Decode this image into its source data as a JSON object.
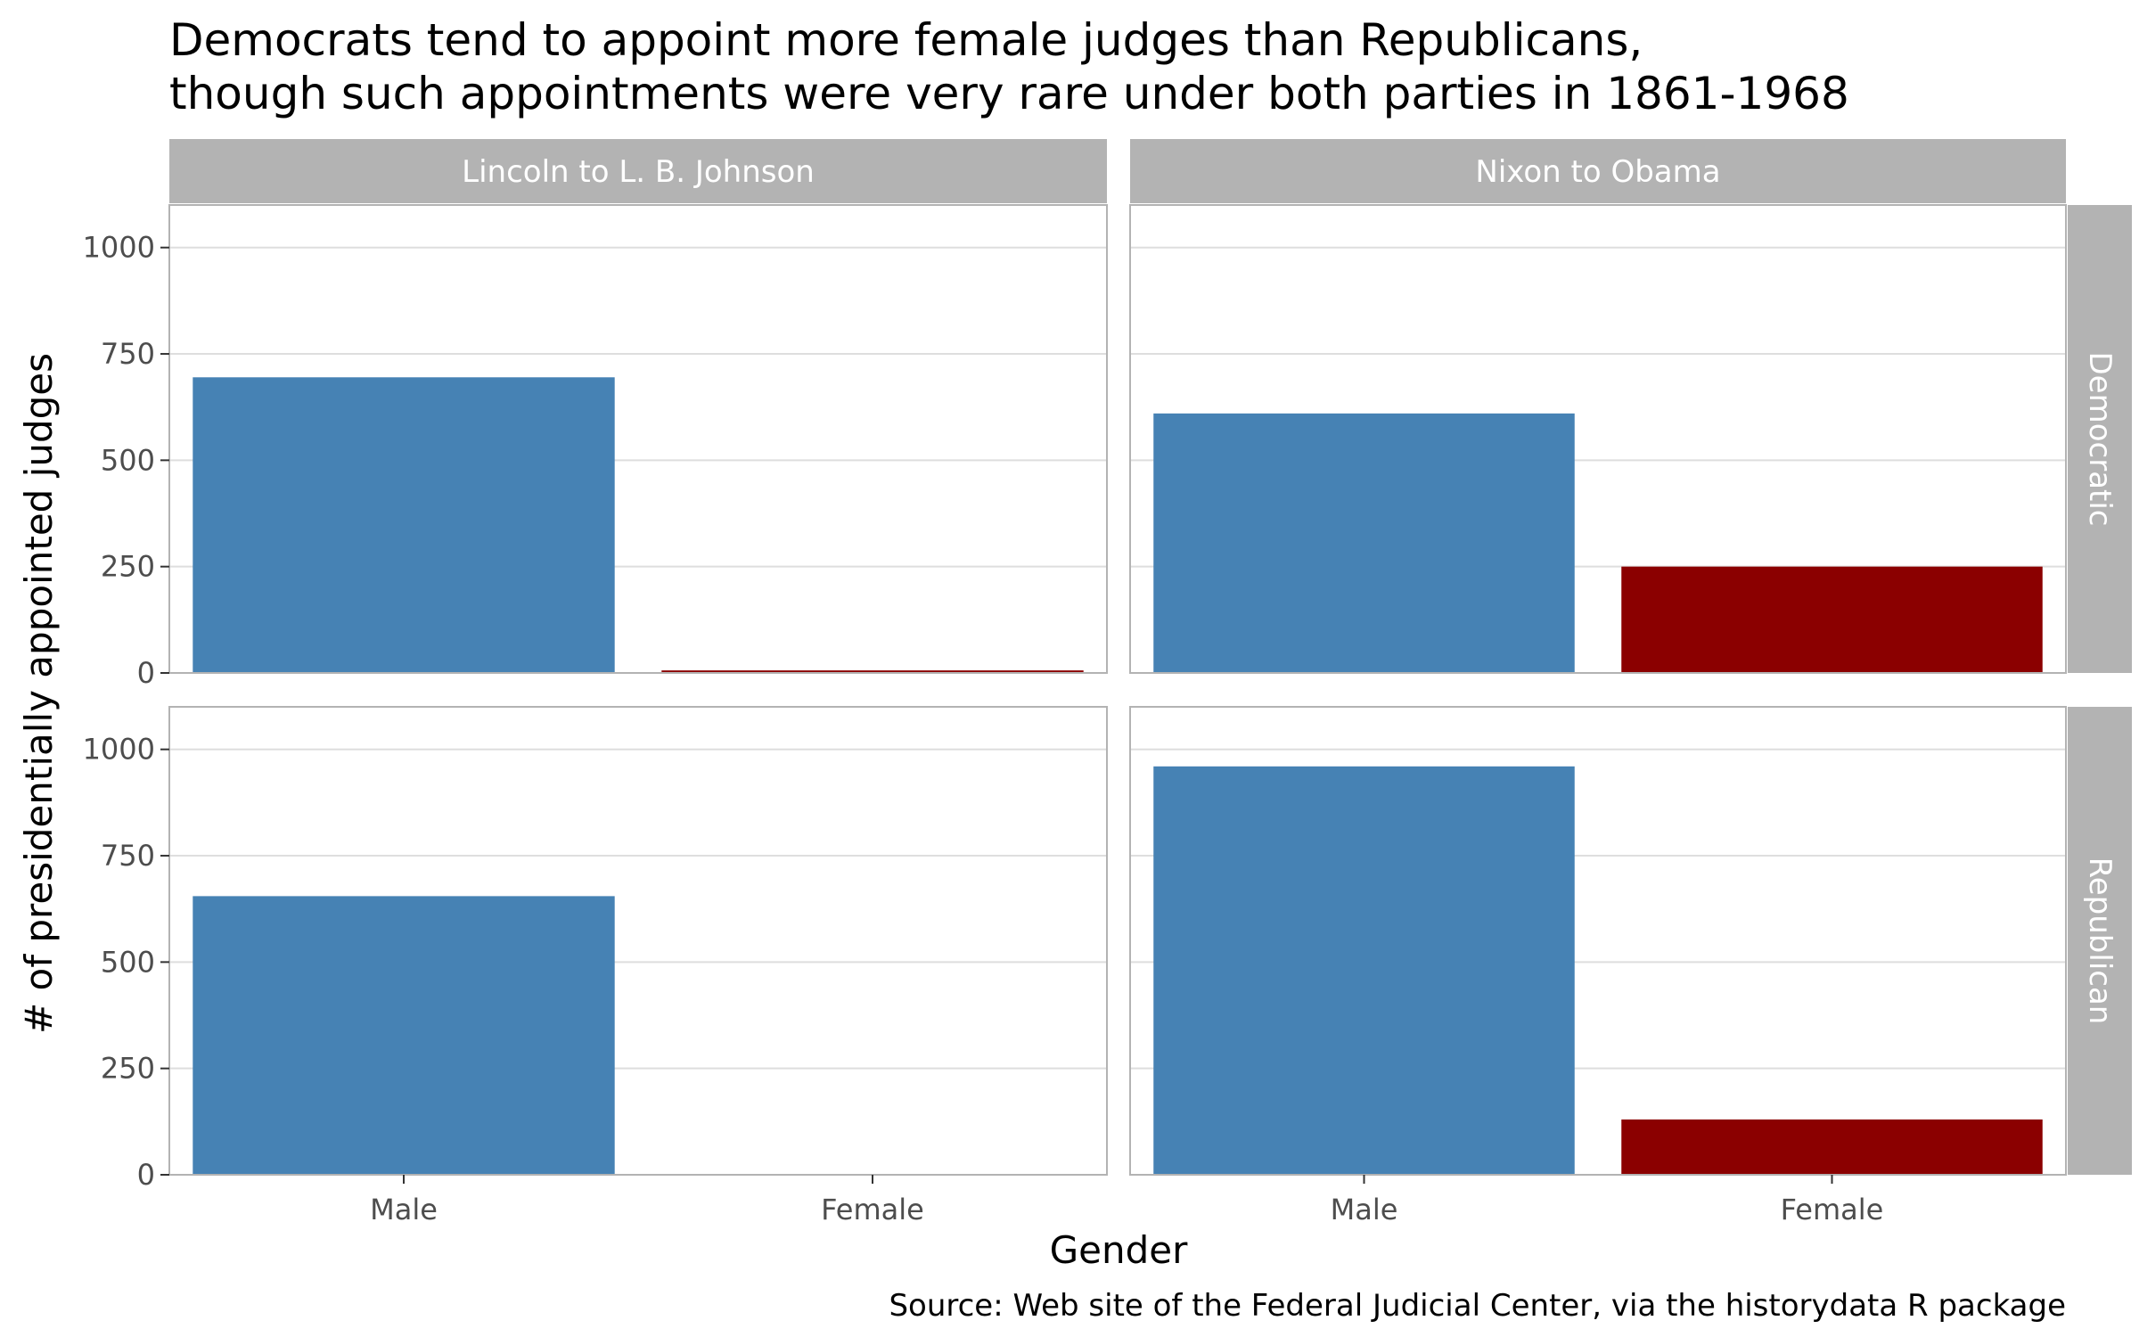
{
  "chart_data": {
    "type": "bar",
    "title": "Democrats tend to appoint more female judges than Republicans,",
    "title_line2": "though such appointments were very rare under both parties in 1861-1968",
    "xlabel": "Gender",
    "ylabel": "# of presidentially appointed judges",
    "caption": "Source: Web site of the Federal Judicial Center, via the historydata R package",
    "categories": [
      "Male",
      "Female"
    ],
    "ylim": [
      0,
      1100
    ],
    "yticks": [
      "0",
      "250",
      "500",
      "750",
      "1000"
    ],
    "yticks_values": [
      0,
      250,
      500,
      750,
      1000
    ],
    "grid": true,
    "legend": "none",
    "columns": [
      "Lincoln to L. B. Johnson",
      "Nixon to Obama"
    ],
    "rows": [
      "Democratic",
      "Republican"
    ],
    "panels": [
      {
        "column": "Lincoln to L. B. Johnson",
        "row": "Democratic",
        "values": [
          695,
          6
        ]
      },
      {
        "column": "Nixon to Obama",
        "row": "Democratic",
        "values": [
          610,
          250
        ]
      },
      {
        "column": "Lincoln to L. B. Johnson",
        "row": "Republican",
        "values": [
          655,
          1
        ]
      },
      {
        "column": "Nixon to Obama",
        "row": "Republican",
        "values": [
          960,
          130
        ]
      }
    ],
    "colors": {
      "Male": "#4682b4",
      "Female": "#8b0000"
    }
  }
}
